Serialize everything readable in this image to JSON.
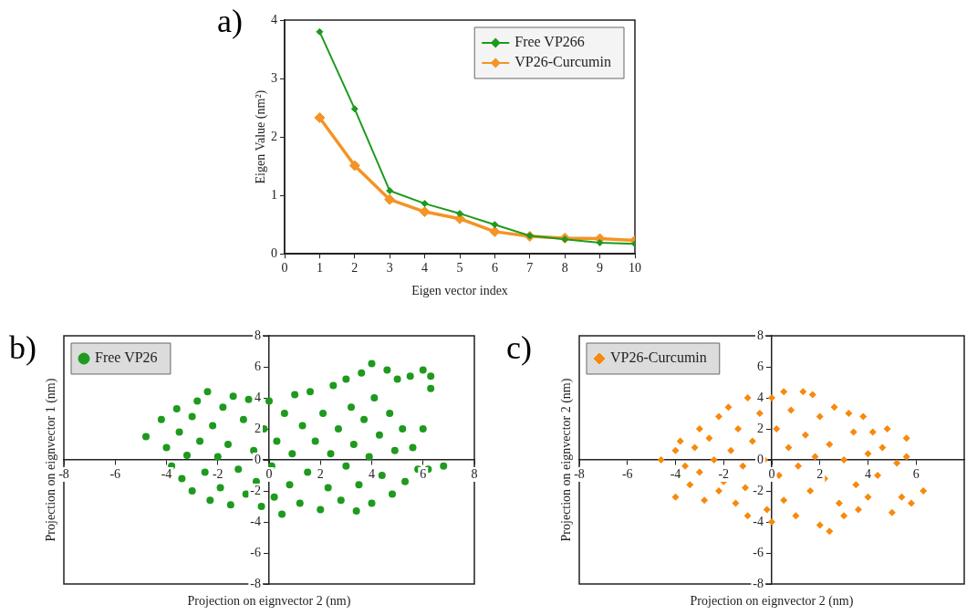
{
  "chart_data": [
    {
      "type": "line",
      "title": "a)",
      "xlabel": "Eigen vector index",
      "ylabel": "Eigen Value (nm²)",
      "x": [
        1,
        2,
        3,
        4,
        5,
        6,
        7,
        8,
        9,
        10
      ],
      "xlim": [
        0,
        10
      ],
      "xticks": [
        0,
        1,
        2,
        3,
        4,
        5,
        6,
        7,
        8,
        9,
        10
      ],
      "ylim": [
        0,
        4
      ],
      "yticks": [
        0,
        1,
        2,
        3,
        4
      ],
      "grid": false,
      "legend": "top right",
      "marker": "diamond",
      "line_style": "solid",
      "series": [
        {
          "name": "Free VP266",
          "color": "#1e9a1e",
          "values": [
            3.8,
            2.48,
            1.08,
            0.86,
            0.69,
            0.5,
            0.31,
            0.25,
            0.19,
            0.17
          ]
        },
        {
          "name": "VP26-Curcumin",
          "color": "#f39425",
          "values": [
            2.33,
            1.51,
            0.93,
            0.72,
            0.6,
            0.38,
            0.3,
            0.27,
            0.26,
            0.23
          ]
        }
      ]
    },
    {
      "type": "scatter",
      "title": "b)",
      "xlabel": "Projection on eignvector 2 (nm)",
      "ylabel": "Projection on eignvector 1 (nm)",
      "xlim": [
        -8,
        8
      ],
      "xticks": [
        -8,
        -6,
        -4,
        -2,
        0,
        2,
        4,
        6,
        8
      ],
      "ylim": [
        -8,
        8
      ],
      "yticks": [
        -8,
        -6,
        -4,
        -2,
        0,
        2,
        4,
        6,
        8
      ],
      "grid": false,
      "legend": "top left",
      "marker": "circle",
      "series": [
        {
          "name": "Free VP26",
          "color": "#1e9a1e",
          "x": [
            -4.8,
            -4.2,
            -4,
            -3.8,
            -3.6,
            -3.5,
            -3.4,
            -3.2,
            -3,
            -3,
            -2.8,
            -2.7,
            -2.5,
            -2.4,
            -2.3,
            -2.2,
            -2,
            -1.9,
            -1.8,
            -1.6,
            -1.5,
            -1.4,
            -1.2,
            -1,
            -0.9,
            -0.8,
            -0.6,
            -0.5,
            -0.3,
            -0.2,
            0,
            0.1,
            0.2,
            0.3,
            0.5,
            0.6,
            0.8,
            0.9,
            1,
            1.2,
            1.3,
            1.5,
            1.6,
            1.8,
            2,
            2.1,
            2.3,
            2.4,
            2.5,
            2.7,
            2.8,
            3,
            3,
            3.2,
            3.3,
            3.4,
            3.5,
            3.6,
            3.7,
            3.9,
            4,
            4,
            4.1,
            4.3,
            4.4,
            4.6,
            4.7,
            4.8,
            4.9,
            5,
            5.2,
            5.3,
            5.5,
            5.6,
            5.8,
            6,
            6,
            6.2,
            6.3,
            6.3,
            6.8
          ],
          "values": [
            1.5,
            2.6,
            0.8,
            -0.4,
            3.3,
            1.8,
            -1.2,
            0.3,
            2.8,
            -2,
            3.8,
            1.2,
            -0.8,
            4.4,
            -2.6,
            2.2,
            0.2,
            -1.8,
            3.4,
            1,
            -2.9,
            4.1,
            -0.6,
            2.6,
            -2.2,
            3.9,
            0.6,
            -1.4,
            -3,
            2,
            3.8,
            -0.4,
            -2.4,
            1.2,
            -3.5,
            3,
            -1.6,
            0.4,
            4.2,
            -2.8,
            2.2,
            -0.8,
            4.4,
            1.2,
            -3.2,
            3,
            -1.8,
            0.4,
            4.8,
            2,
            -2.6,
            -0.4,
            5.2,
            3.4,
            1,
            -3.3,
            -1.6,
            5.6,
            2.6,
            0.2,
            6.2,
            -2.8,
            4,
            1.6,
            -1,
            5.8,
            3,
            -2.2,
            0.6,
            5.2,
            2,
            -1.4,
            5.4,
            0.8,
            -0.6,
            5.8,
            2,
            -0.6,
            4.6,
            5.4,
            -0.4
          ]
        }
      ]
    },
    {
      "type": "scatter",
      "title": "c)",
      "xlabel": "Projection on eignvector 2 (nm)",
      "ylabel": "Projection on eignvector 2 (nm)",
      "xlim": [
        -8,
        8
      ],
      "xticks": [
        -8,
        -6,
        -4,
        -2,
        0,
        2,
        4,
        6
      ],
      "ylim": [
        -8,
        8
      ],
      "yticks": [
        -8,
        -6,
        -4,
        -2,
        0,
        2,
        4,
        6,
        8
      ],
      "grid": false,
      "legend": "top left",
      "marker": "diamond",
      "series": [
        {
          "name": "VP26-Curcumin",
          "color": "#f7890c",
          "x": [
            -4.6,
            -4,
            -4,
            -3.8,
            -3.6,
            -3.4,
            -3.2,
            -3,
            -3,
            -2.8,
            -2.6,
            -2.4,
            -2.2,
            -2.2,
            -2,
            -1.8,
            -1.7,
            -1.5,
            -1.4,
            -1.2,
            -1,
            -1,
            -0.8,
            -1.1,
            -0.5,
            -0.3,
            -0.2,
            0,
            0,
            0.2,
            0.3,
            0.5,
            0.5,
            0.7,
            0.8,
            1,
            1.1,
            1.3,
            1.4,
            1.6,
            1.7,
            1.8,
            2,
            2,
            2.2,
            2.4,
            2.4,
            2.6,
            2.8,
            3,
            3,
            3.2,
            3.4,
            3.5,
            3.6,
            3.8,
            4,
            4,
            4.2,
            4.4,
            4.6,
            4.8,
            5,
            5.2,
            5.4,
            5.6,
            5.6,
            5.8,
            6.3
          ],
          "values": [
            0,
            -2.4,
            0.6,
            1.2,
            -0.4,
            -1.6,
            0.8,
            2,
            -0.8,
            -2.6,
            1.4,
            0,
            2.8,
            -2,
            -1.4,
            3.4,
            0.6,
            -2.8,
            2,
            -0.4,
            4,
            -3.6,
            1.2,
            -1.8,
            3,
            0,
            -3.2,
            4,
            -4,
            2,
            -1,
            4.4,
            -2.6,
            0.8,
            3.2,
            -3.6,
            -0.4,
            4.4,
            1.6,
            -2,
            4.2,
            0.2,
            -4.2,
            2.8,
            -1.2,
            -4.6,
            1,
            3.4,
            -2.8,
            0,
            -3.6,
            3,
            1.8,
            -1.6,
            -3.2,
            2.8,
            0.4,
            -2.4,
            1.8,
            -1,
            0.8,
            2,
            -3.4,
            -0.2,
            -2.4,
            0.2,
            1.4,
            -2.8,
            -2
          ]
        }
      ]
    }
  ]
}
